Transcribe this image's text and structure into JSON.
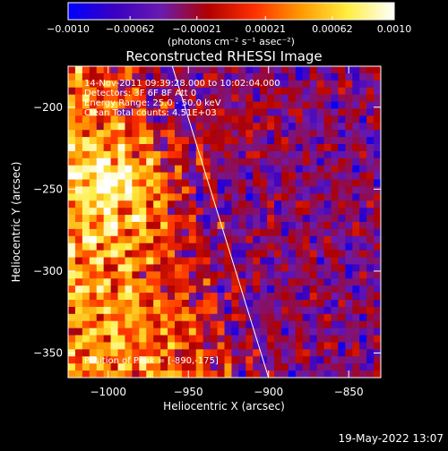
{
  "chart_data": {
    "type": "heatmap",
    "title": "Reconstructed RHESSI Image",
    "xlabel": "Heliocentric X (arcsec)",
    "ylabel": "Heliocentric Y (arcsec)",
    "xlim": [
      -1025,
      -830
    ],
    "ylim": [
      -365,
      -175
    ],
    "x_ticks": [
      -1000,
      -950,
      -900,
      -850
    ],
    "x_tick_labels": [
      "−1000",
      "−950",
      "−900",
      "−850"
    ],
    "y_ticks": [
      -200,
      -250,
      -300,
      -350
    ],
    "y_tick_labels": [
      "−200",
      "−250",
      "−300",
      "−350"
    ],
    "colorbar": {
      "range": [
        -0.001,
        0.001
      ],
      "ticks": [
        -0.001,
        -0.00062,
        -0.00021,
        0.00021,
        0.00062,
        0.001
      ],
      "tick_labels": [
        "−0.0010",
        "−0.00062",
        "−0.00021",
        "0.00021",
        "0.00062",
        "0.0010"
      ],
      "unit_label": "(photons cm⁻² s⁻¹ asec⁻²)",
      "colors": [
        "#0000ff",
        "#3a00c0",
        "#6a1bb0",
        "#b00000",
        "#ff3000",
        "#ff9a00",
        "#ffee40",
        "#ffffff"
      ]
    },
    "annotations": [
      "14-Nov-2011 09:39:28.000 to 10:02:04.000",
      "Detectors: 3F 6F 8F  Att 0",
      "Energy Range: 25.0 - 50.0 keV",
      "Clean    Total counts: 4.51E+03"
    ],
    "peak_label": "Position of Peak = [-890,-175]",
    "limb_line": {
      "from": [
        -960,
        -175
      ],
      "to": [
        -900,
        -365
      ]
    },
    "grid": false
  },
  "footer": {
    "date": "19-May-2022 13:07"
  }
}
